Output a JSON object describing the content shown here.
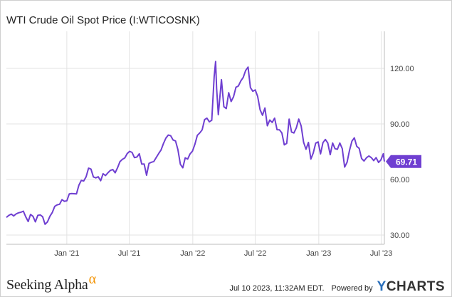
{
  "title": "WTI Crude Oil Spot Price (I:WTICOSNK)",
  "footer": {
    "brand": "Seeking Alpha",
    "brand_mark": "α",
    "timestamp": "Jul 10 2023, 11:32AM EDT.",
    "powered_by": "Powered by",
    "ycharts_y": "Y",
    "ycharts_rest": "CHARTS"
  },
  "colors": {
    "line": "#6f3fd1",
    "grid": "#e3e3e3",
    "label_bg": "#6f3fd1"
  },
  "chart_data": {
    "type": "line",
    "title": "WTI Crude Oil Spot Price (I:WTICOSNK)",
    "xlabel": "",
    "ylabel": "",
    "x_range": [
      "2020-07-10",
      "2023-07-10"
    ],
    "ylim": [
      25,
      140
    ],
    "y_ticks": [
      30,
      60,
      90,
      120
    ],
    "y_tick_labels": [
      "30.00",
      "60.00",
      "90.00",
      "120.00"
    ],
    "x_ticks": [
      "2021-01-01",
      "2021-07-01",
      "2022-01-01",
      "2022-07-01",
      "2023-01-01",
      "2023-07-01"
    ],
    "x_tick_labels": [
      "Jan '21",
      "Jul '21",
      "Jan '22",
      "Jul '22",
      "Jan '23",
      "Jul '23"
    ],
    "grid": true,
    "last_value_label": "69.71",
    "series": [
      {
        "name": "",
        "points": [
          [
            "2020-07-10",
            39.5
          ],
          [
            "2020-07-17",
            40.6
          ],
          [
            "2020-07-24",
            41.3
          ],
          [
            "2020-07-31",
            40.3
          ],
          [
            "2020-08-07",
            41.4
          ],
          [
            "2020-08-14",
            42.0
          ],
          [
            "2020-08-21",
            42.3
          ],
          [
            "2020-08-28",
            42.9
          ],
          [
            "2020-09-04",
            39.8
          ],
          [
            "2020-09-11",
            37.3
          ],
          [
            "2020-09-18",
            41.1
          ],
          [
            "2020-09-25",
            40.1
          ],
          [
            "2020-10-02",
            37.1
          ],
          [
            "2020-10-09",
            40.6
          ],
          [
            "2020-10-16",
            40.9
          ],
          [
            "2020-10-23",
            39.9
          ],
          [
            "2020-10-30",
            35.8
          ],
          [
            "2020-11-06",
            37.1
          ],
          [
            "2020-11-13",
            40.1
          ],
          [
            "2020-11-20",
            42.2
          ],
          [
            "2020-11-27",
            45.5
          ],
          [
            "2020-12-04",
            46.3
          ],
          [
            "2020-12-11",
            46.6
          ],
          [
            "2020-12-18",
            49.1
          ],
          [
            "2020-12-25",
            48.2
          ],
          [
            "2021-01-01",
            48.5
          ],
          [
            "2021-01-08",
            52.2
          ],
          [
            "2021-01-15",
            52.4
          ],
          [
            "2021-01-22",
            52.3
          ],
          [
            "2021-01-29",
            52.2
          ],
          [
            "2021-02-05",
            56.9
          ],
          [
            "2021-02-12",
            59.5
          ],
          [
            "2021-02-19",
            59.2
          ],
          [
            "2021-02-26",
            61.5
          ],
          [
            "2021-03-05",
            66.1
          ],
          [
            "2021-03-12",
            65.6
          ],
          [
            "2021-03-19",
            61.4
          ],
          [
            "2021-03-26",
            60.9
          ],
          [
            "2021-04-02",
            61.5
          ],
          [
            "2021-04-09",
            59.3
          ],
          [
            "2021-04-16",
            63.1
          ],
          [
            "2021-04-23",
            62.1
          ],
          [
            "2021-04-30",
            63.6
          ],
          [
            "2021-05-07",
            64.9
          ],
          [
            "2021-05-14",
            65.4
          ],
          [
            "2021-05-21",
            63.6
          ],
          [
            "2021-05-28",
            66.3
          ],
          [
            "2021-06-04",
            69.6
          ],
          [
            "2021-06-11",
            70.9
          ],
          [
            "2021-06-18",
            71.6
          ],
          [
            "2021-06-25",
            74.0
          ],
          [
            "2021-07-02",
            75.2
          ],
          [
            "2021-07-09",
            74.6
          ],
          [
            "2021-07-16",
            71.8
          ],
          [
            "2021-07-23",
            72.1
          ],
          [
            "2021-07-30",
            73.9
          ],
          [
            "2021-08-06",
            68.3
          ],
          [
            "2021-08-13",
            68.4
          ],
          [
            "2021-08-20",
            62.3
          ],
          [
            "2021-08-27",
            68.7
          ],
          [
            "2021-09-03",
            69.3
          ],
          [
            "2021-09-10",
            69.7
          ],
          [
            "2021-09-17",
            71.9
          ],
          [
            "2021-09-24",
            74.0
          ],
          [
            "2021-10-01",
            75.9
          ],
          [
            "2021-10-08",
            79.4
          ],
          [
            "2021-10-15",
            82.3
          ],
          [
            "2021-10-22",
            84.0
          ],
          [
            "2021-10-29",
            83.6
          ],
          [
            "2021-11-05",
            81.3
          ],
          [
            "2021-11-12",
            80.8
          ],
          [
            "2021-11-19",
            76.0
          ],
          [
            "2021-11-26",
            68.2
          ],
          [
            "2021-12-03",
            66.3
          ],
          [
            "2021-12-10",
            71.7
          ],
          [
            "2021-12-17",
            71.0
          ],
          [
            "2021-12-24",
            73.8
          ],
          [
            "2021-12-31",
            75.3
          ],
          [
            "2022-01-07",
            79.0
          ],
          [
            "2022-01-14",
            83.8
          ],
          [
            "2022-01-21",
            85.1
          ],
          [
            "2022-01-28",
            86.8
          ],
          [
            "2022-02-04",
            92.3
          ],
          [
            "2022-02-11",
            93.1
          ],
          [
            "2022-02-18",
            91.1
          ],
          [
            "2022-02-25",
            92.0
          ],
          [
            "2022-03-04",
            115.7
          ],
          [
            "2022-03-08",
            123.7
          ],
          [
            "2022-03-11",
            109.3
          ],
          [
            "2022-03-16",
            95.0
          ],
          [
            "2022-03-25",
            113.9
          ],
          [
            "2022-04-01",
            99.3
          ],
          [
            "2022-04-08",
            98.3
          ],
          [
            "2022-04-15",
            106.9
          ],
          [
            "2022-04-22",
            102.1
          ],
          [
            "2022-04-29",
            104.7
          ],
          [
            "2022-05-06",
            109.8
          ],
          [
            "2022-05-13",
            110.5
          ],
          [
            "2022-05-20",
            113.2
          ],
          [
            "2022-05-27",
            115.1
          ],
          [
            "2022-06-03",
            118.9
          ],
          [
            "2022-06-10",
            120.7
          ],
          [
            "2022-06-17",
            109.6
          ],
          [
            "2022-06-24",
            107.6
          ],
          [
            "2022-07-01",
            108.4
          ],
          [
            "2022-07-08",
            104.8
          ],
          [
            "2022-07-15",
            97.6
          ],
          [
            "2022-07-22",
            94.7
          ],
          [
            "2022-07-29",
            98.6
          ],
          [
            "2022-08-05",
            89.0
          ],
          [
            "2022-08-12",
            92.1
          ],
          [
            "2022-08-19",
            90.8
          ],
          [
            "2022-08-26",
            93.1
          ],
          [
            "2022-09-02",
            86.9
          ],
          [
            "2022-09-09",
            86.8
          ],
          [
            "2022-09-16",
            85.1
          ],
          [
            "2022-09-23",
            78.7
          ],
          [
            "2022-09-30",
            79.5
          ],
          [
            "2022-10-07",
            92.6
          ],
          [
            "2022-10-14",
            85.6
          ],
          [
            "2022-10-21",
            85.1
          ],
          [
            "2022-10-28",
            87.9
          ],
          [
            "2022-11-04",
            92.6
          ],
          [
            "2022-11-11",
            88.9
          ],
          [
            "2022-11-18",
            80.1
          ],
          [
            "2022-11-25",
            76.3
          ],
          [
            "2022-12-02",
            80.0
          ],
          [
            "2022-12-09",
            71.0
          ],
          [
            "2022-12-16",
            74.3
          ],
          [
            "2022-12-23",
            79.6
          ],
          [
            "2022-12-30",
            80.3
          ],
          [
            "2023-01-06",
            73.8
          ],
          [
            "2023-01-13",
            79.9
          ],
          [
            "2023-01-20",
            81.6
          ],
          [
            "2023-01-27",
            79.7
          ],
          [
            "2023-02-03",
            73.4
          ],
          [
            "2023-02-10",
            79.7
          ],
          [
            "2023-02-17",
            76.6
          ],
          [
            "2023-02-24",
            76.3
          ],
          [
            "2023-03-03",
            79.7
          ],
          [
            "2023-03-10",
            76.7
          ],
          [
            "2023-03-17",
            66.7
          ],
          [
            "2023-03-24",
            69.3
          ],
          [
            "2023-03-31",
            75.7
          ],
          [
            "2023-04-07",
            80.7
          ],
          [
            "2023-04-14",
            82.5
          ],
          [
            "2023-04-21",
            77.9
          ],
          [
            "2023-04-28",
            76.8
          ],
          [
            "2023-05-05",
            71.3
          ],
          [
            "2023-05-12",
            70.0
          ],
          [
            "2023-05-19",
            71.7
          ],
          [
            "2023-05-26",
            72.7
          ],
          [
            "2023-06-02",
            71.8
          ],
          [
            "2023-06-09",
            70.2
          ],
          [
            "2023-06-16",
            71.8
          ],
          [
            "2023-06-23",
            69.2
          ],
          [
            "2023-06-30",
            70.6
          ],
          [
            "2023-07-07",
            73.9
          ],
          [
            "2023-07-10",
            69.71
          ]
        ]
      }
    ]
  }
}
